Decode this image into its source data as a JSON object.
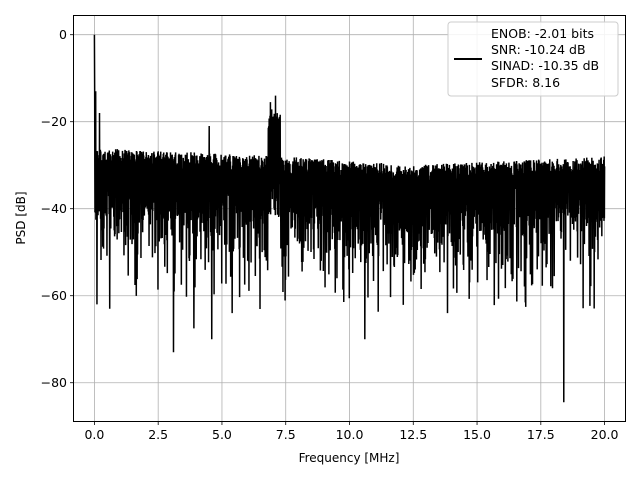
{
  "chart_data": {
    "type": "line",
    "xlabel": "Frequency [MHz]",
    "ylabel": "PSD [dB]",
    "xlim": [
      -0.8,
      20.8
    ],
    "ylim": [
      -88.8,
      4.3
    ],
    "x_ticks": [
      0.0,
      2.5,
      5.0,
      7.5,
      10.0,
      12.5,
      15.0,
      17.5,
      20.0
    ],
    "x_tick_labels": [
      "0.0",
      "2.5",
      "5.0",
      "7.5",
      "10.0",
      "12.5",
      "15.0",
      "17.5",
      "20.0"
    ],
    "y_ticks": [
      0,
      -20,
      -40,
      -60,
      -80
    ],
    "y_tick_labels": [
      "0",
      "−20",
      "−40",
      "−60",
      "−80"
    ],
    "grid": true,
    "legend_position": "top-right",
    "legend_lines": [
      "ENOB: -2.01 bits",
      "SNR: -10.24 dB",
      "SINAD: -10.35 dB",
      "SFDR: 8.16"
    ],
    "series": [
      {
        "color": "#000000",
        "x_range": [
          0,
          20
        ],
        "noise_floor_db": [
          [
            0,
            -28
          ],
          [
            7.5,
            -30
          ],
          [
            12.5,
            -32
          ],
          [
            20,
            -30
          ]
        ],
        "peaks": [
          {
            "x": 0.0,
            "y": 0.0
          },
          {
            "x": 0.05,
            "y": -13.0
          },
          {
            "x": 0.2,
            "y": -18.0
          },
          {
            "x": 4.5,
            "y": -21.0
          },
          {
            "x": 6.9,
            "y": -15.5
          },
          {
            "x": 7.1,
            "y": -14.0
          }
        ],
        "dips": [
          {
            "x": 0.1,
            "y": -62.0
          },
          {
            "x": 0.6,
            "y": -63.0
          },
          {
            "x": 3.1,
            "y": -73.0
          },
          {
            "x": 3.9,
            "y": -67.5
          },
          {
            "x": 4.6,
            "y": -70.0
          },
          {
            "x": 5.4,
            "y": -64.0
          },
          {
            "x": 10.6,
            "y": -70.0
          },
          {
            "x": 18.4,
            "y": -84.5
          }
        ]
      }
    ]
  }
}
